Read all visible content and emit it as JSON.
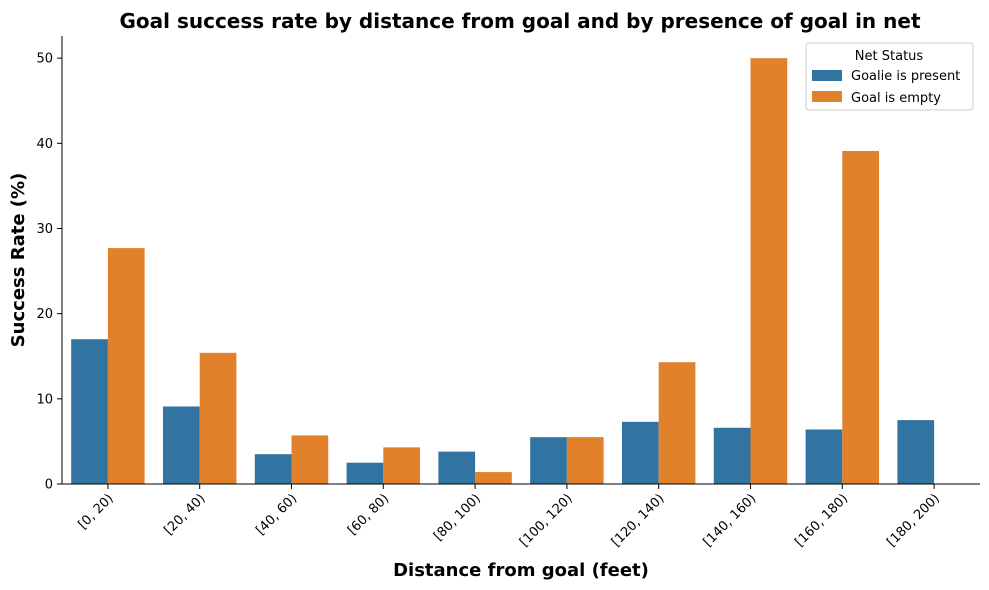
{
  "chart_data": {
    "type": "bar",
    "title": "Goal success rate by distance from goal and by presence of goal in net",
    "xlabel": "Distance from goal (feet)",
    "ylabel": "Success Rate (%)",
    "categories": [
      "[0, 20)",
      "[20, 40)",
      "[40, 60)",
      "[60, 80)",
      "[80, 100)",
      "[100, 120)",
      "[120, 140)",
      "[140, 160)",
      "[160, 180)",
      "[180, 200)"
    ],
    "series": [
      {
        "name": "Goalie is present",
        "color": "#3274a1",
        "values": [
          17.0,
          9.1,
          3.5,
          2.5,
          3.8,
          5.5,
          7.3,
          6.6,
          6.4,
          7.5
        ]
      },
      {
        "name": "Goal is empty",
        "color": "#e1812c",
        "values": [
          27.7,
          15.4,
          5.7,
          4.3,
          1.4,
          5.5,
          14.3,
          50.0,
          39.1,
          0
        ]
      }
    ],
    "ylim": [
      0,
      52.6
    ],
    "yticks": [
      0,
      10,
      20,
      30,
      40,
      50
    ],
    "grid": false,
    "legend": {
      "title": "Net Status",
      "placement": "top-right"
    }
  }
}
